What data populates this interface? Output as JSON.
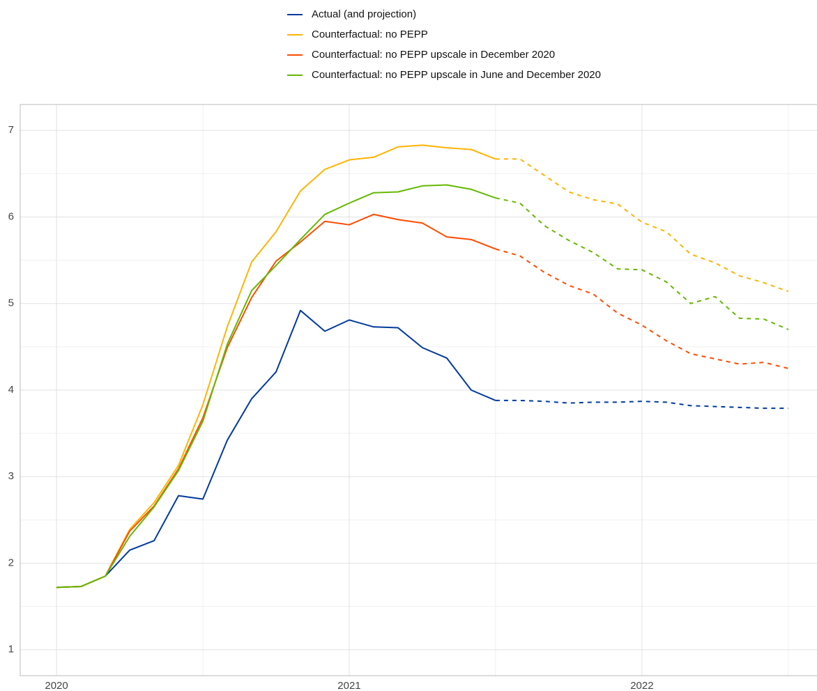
{
  "chart_data": {
    "type": "line",
    "legend": "top",
    "grid": true,
    "projection_from": 2021.5,
    "x": [
      2020,
      2020.0833,
      2020.1667,
      2020.25,
      2020.3333,
      2020.4167,
      2020.5,
      2020.5833,
      2020.6667,
      2020.75,
      2020.8333,
      2020.9167,
      2021,
      2021.0833,
      2021.1667,
      2021.25,
      2021.3333,
      2021.4167,
      2021.5,
      2021.5833,
      2021.6667,
      2021.75,
      2021.8333,
      2021.9167,
      2022,
      2022.0833,
      2022.1667,
      2022.25,
      2022.3333,
      2022.4167,
      2022.5
    ],
    "xlim": [
      2019.876,
      2022.598
    ],
    "xticks": [
      2020,
      2021,
      2022
    ],
    "ylim": [
      0.7,
      7.3
    ],
    "yticks": [
      1,
      2,
      3,
      4,
      5,
      6,
      7
    ],
    "series": [
      {
        "name": "Actual (and projection)",
        "color": "#003a9e",
        "values": [
          1.72,
          1.73,
          1.85,
          2.15,
          2.26,
          2.78,
          2.74,
          3.42,
          3.9,
          4.21,
          4.92,
          4.68,
          4.81,
          4.73,
          4.72,
          4.49,
          4.37,
          4.0,
          3.88,
          3.88,
          3.87,
          3.85,
          3.86,
          3.86,
          3.87,
          3.86,
          3.82,
          3.81,
          3.8,
          3.79,
          3.79
        ]
      },
      {
        "name": "Counterfactual: no PEPP",
        "color": "#ffb400",
        "values": [
          1.72,
          1.73,
          1.85,
          2.39,
          2.7,
          3.13,
          3.83,
          4.73,
          5.48,
          5.83,
          6.3,
          6.55,
          6.66,
          6.69,
          6.81,
          6.83,
          6.8,
          6.78,
          6.67,
          6.67,
          6.48,
          6.29,
          6.2,
          6.15,
          5.94,
          5.83,
          5.57,
          5.47,
          5.32,
          5.24,
          5.14
        ]
      },
      {
        "name": "Counterfactual: no PEPP upscale in December 2020",
        "color": "#ff4b00",
        "values": [
          1.72,
          1.73,
          1.85,
          2.37,
          2.66,
          3.09,
          3.68,
          4.49,
          5.07,
          5.49,
          5.71,
          5.95,
          5.91,
          6.03,
          5.97,
          5.93,
          5.77,
          5.74,
          5.63,
          5.55,
          5.36,
          5.21,
          5.11,
          4.89,
          4.75,
          4.57,
          4.42,
          4.36,
          4.3,
          4.32,
          4.25
        ]
      },
      {
        "name": "Counterfactual: no PEPP upscale in June and December 2020",
        "color": "#65b800",
        "values": [
          1.72,
          1.73,
          1.85,
          2.31,
          2.65,
          3.07,
          3.64,
          4.53,
          5.15,
          5.44,
          5.74,
          6.03,
          6.16,
          6.28,
          6.29,
          6.36,
          6.37,
          6.32,
          6.22,
          6.16,
          5.9,
          5.73,
          5.59,
          5.4,
          5.39,
          5.25,
          5.0,
          5.08,
          4.83,
          4.82,
          4.7
        ]
      }
    ]
  }
}
